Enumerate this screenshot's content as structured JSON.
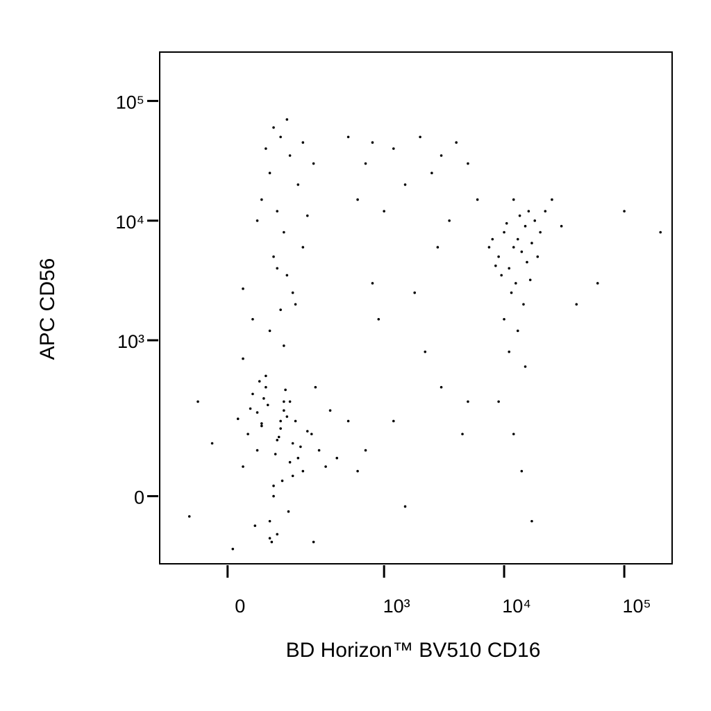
{
  "chart_data": {
    "type": "scatter",
    "x_label": "BD Horizon™ BV510  CD16",
    "y_label": "APC CD56",
    "xscale": "biexponential",
    "yscale": "biexponential",
    "xlim": [
      -170,
      250000
    ],
    "ylim": [
      -170,
      256000
    ],
    "xticks": [
      0,
      {
        "value": 1000,
        "label": "10³"
      },
      {
        "value": 10000,
        "label": "10⁴"
      },
      {
        "value": 100000,
        "label": "10⁵"
      }
    ],
    "yticks": [
      0,
      {
        "value": 1000,
        "label": "10³"
      },
      {
        "value": 10000,
        "label": "10⁴"
      },
      {
        "value": 100000,
        "label": "10⁵"
      }
    ],
    "color": "#000000",
    "x": [
      60,
      120,
      90,
      150,
      40,
      200,
      80,
      110,
      130,
      70,
      100,
      160,
      50,
      180,
      95,
      140,
      30,
      220,
      85,
      125,
      65,
      105,
      145,
      75,
      115,
      170,
      55,
      135,
      190,
      45,
      100,
      120,
      80,
      150,
      60,
      110,
      90,
      130,
      70,
      160,
      240,
      20,
      280,
      -30,
      320,
      10,
      260,
      350,
      -60,
      400,
      30,
      250,
      500,
      600,
      -80,
      80,
      120,
      150,
      90,
      200,
      250,
      110,
      130,
      70,
      180,
      100,
      140,
      160,
      120,
      90,
      200,
      110,
      60,
      170,
      130,
      30,
      50,
      220,
      100,
      140,
      500,
      800,
      1200,
      2000,
      3000,
      1500,
      700,
      2500,
      4000,
      5000,
      600,
      1000,
      3500,
      6000,
      1800,
      900,
      2200,
      3000,
      1200,
      5000,
      700,
      1500,
      4500,
      800,
      2800,
      10000,
      12000,
      15000,
      9000,
      13000,
      18000,
      11000,
      14000,
      16000,
      8000,
      12500,
      20000,
      10500,
      17000,
      9500,
      13500,
      11500,
      15500,
      7500,
      22000,
      14500,
      12000,
      19000,
      8500,
      16500,
      10000,
      13000,
      11000,
      15000,
      9000,
      12000,
      14000,
      17000,
      25000,
      30000,
      60000,
      100000,
      40000,
      200000
    ],
    "values": [
      100,
      200,
      -50,
      300,
      150,
      50,
      400,
      -80,
      250,
      180,
      0,
      120,
      350,
      80,
      -100,
      220,
      60,
      160,
      280,
      30,
      450,
      90,
      -30,
      320,
      140,
      200,
      -60,
      380,
      110,
      260,
      20,
      170,
      500,
      70,
      240,
      130,
      -90,
      300,
      190,
      40,
      150,
      210,
      100,
      120,
      60,
      -120,
      400,
      250,
      300,
      80,
      700,
      -100,
      200,
      50,
      -40,
      40000,
      50000,
      35000,
      25000,
      45000,
      30000,
      12000,
      8000,
      15000,
      20000,
      5000,
      3500,
      2500,
      1800,
      1200,
      6000,
      4000,
      10000,
      2000,
      900,
      2700,
      1500,
      11000,
      60000,
      70000,
      50000,
      45000,
      40000,
      50000,
      35000,
      20000,
      30000,
      25000,
      45000,
      30000,
      15000,
      12000,
      10000,
      15000,
      2500,
      1500,
      800,
      400,
      200,
      300,
      100,
      -20,
      150,
      3000,
      6000,
      8000,
      6000,
      9000,
      5000,
      7000,
      10000,
      4000,
      5500,
      12000,
      7000,
      3000,
      8000,
      9500,
      6500,
      3500,
      11000,
      2500,
      4500,
      6000,
      12000,
      2000,
      15000,
      5000,
      4200,
      3200,
      1500,
      1200,
      800,
      600,
      300,
      150,
      50,
      -50,
      15000,
      9000,
      3000,
      12000,
      2000,
      8000
    ]
  }
}
